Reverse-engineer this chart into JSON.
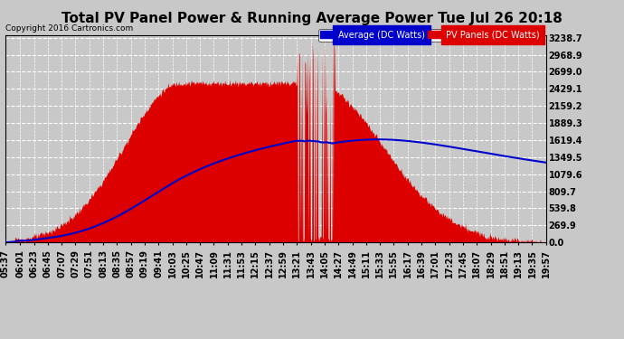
{
  "title": "Total PV Panel Power & Running Average Power Tue Jul 26 20:18",
  "copyright": "Copyright 2016 Cartronics.com",
  "legend_avg": "Average (DC Watts)",
  "legend_pv": "PV Panels (DC Watts)",
  "ymax": 3238.7,
  "ymin": 0.0,
  "yticks": [
    0.0,
    269.9,
    539.8,
    809.7,
    1079.6,
    1349.5,
    1619.4,
    1889.3,
    2159.2,
    2429.1,
    2699.0,
    2968.9,
    3238.7
  ],
  "background_color": "#c8c8c8",
  "plot_bg_color": "#c8c8c8",
  "pv_color": "#dd0000",
  "avg_color": "#0000cc",
  "grid_color": "#ffffff",
  "title_fontsize": 11,
  "tick_fontsize": 7,
  "label_times": [
    "05:37",
    "06:01",
    "06:23",
    "06:45",
    "07:07",
    "07:29",
    "07:51",
    "08:13",
    "08:35",
    "08:57",
    "09:19",
    "09:41",
    "10:03",
    "10:25",
    "10:47",
    "11:09",
    "11:31",
    "11:53",
    "12:15",
    "12:37",
    "12:59",
    "13:21",
    "13:43",
    "14:05",
    "14:27",
    "14:49",
    "15:11",
    "15:33",
    "15:55",
    "16:17",
    "16:39",
    "17:01",
    "17:23",
    "17:45",
    "18:07",
    "18:29",
    "18:51",
    "19:13",
    "19:35",
    "19:57"
  ]
}
